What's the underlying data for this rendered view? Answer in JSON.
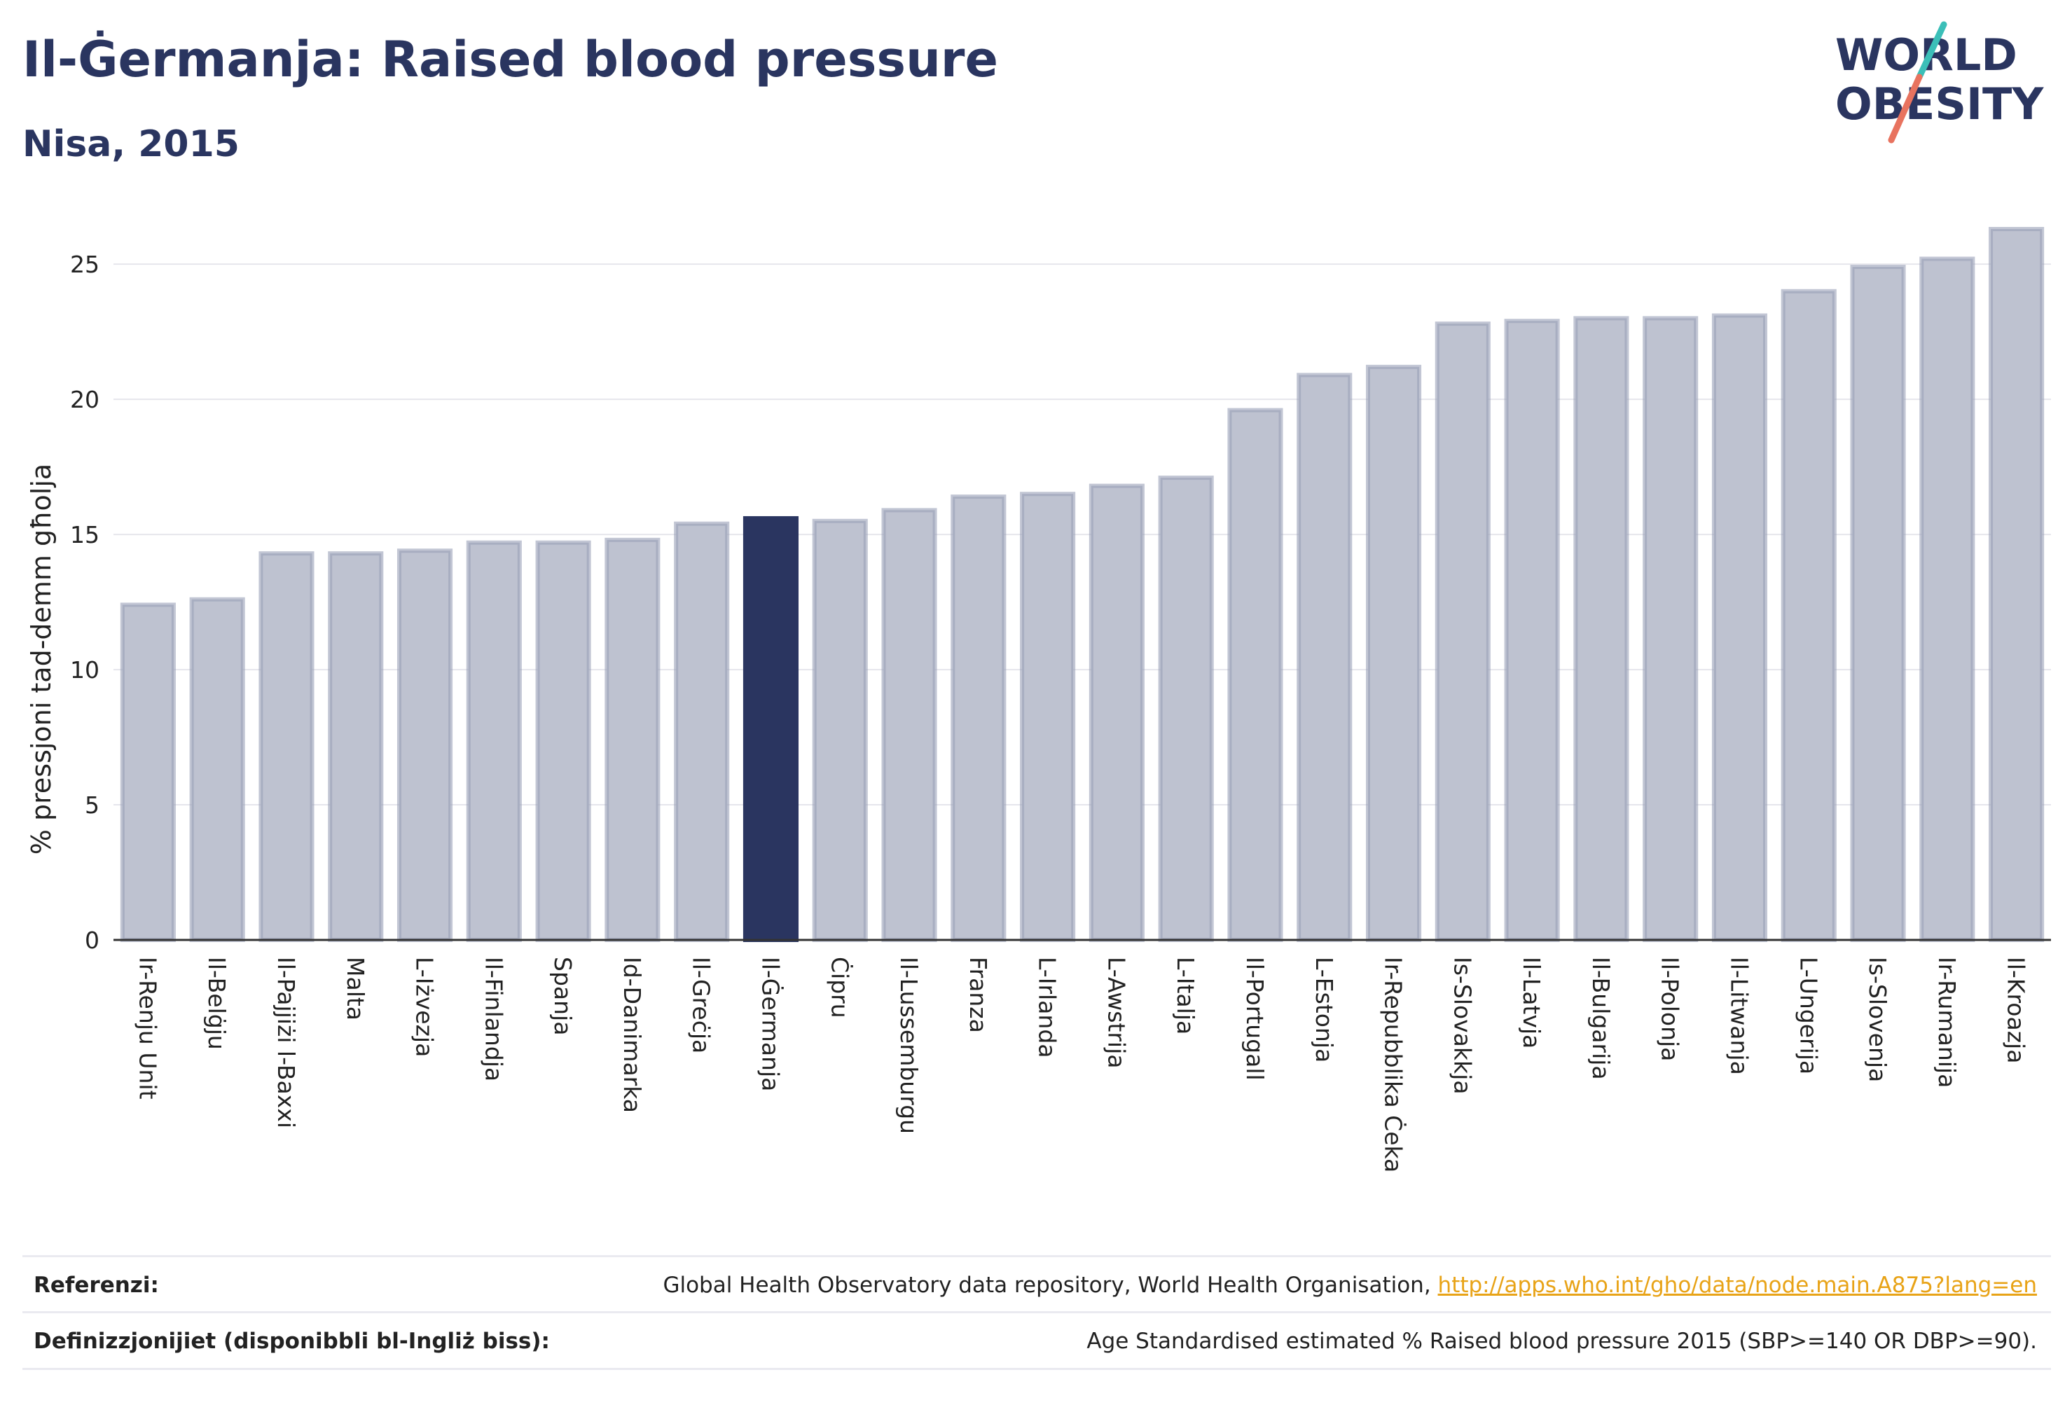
{
  "header": {
    "title": "Il-Ġermanja: Raised blood pressure",
    "subtitle": "Nisa, 2015"
  },
  "logo": {
    "line1": "WORLD",
    "line2": "OBESITY",
    "colors": {
      "text": "#2a3560",
      "slash_teal": "#3bbfb8",
      "slash_coral": "#e8735f"
    }
  },
  "colors": {
    "bar_fill": "#bec2d0",
    "bar_stroke": "#9aa0b8",
    "highlight_fill": "#2a3560",
    "grid": "#e6e6ec",
    "axis": "#333333"
  },
  "chart_data": {
    "type": "bar",
    "title": "",
    "xlabel": "",
    "ylabel": "% pressjoni tad-demm għolja",
    "ylim": [
      0,
      27
    ],
    "yticks": [
      0,
      5,
      10,
      15,
      20,
      25
    ],
    "grid": true,
    "highlight": "Il-Ġermanja",
    "categories": [
      "Ir-Renju Unit",
      "Il-Belġju",
      "Il-Pajjiżi l-Baxxi",
      "Malta",
      "L-Iżvezja",
      "Il-Finlandja",
      "Spanja",
      "Id-Danimarka",
      "Il-Greċja",
      "Il-Ġermanja",
      "Ċipru",
      "Il-Lussemburgu",
      "Franza",
      "L-Irlanda",
      "L-Awstrija",
      "L-Italja",
      "Il-Portugall",
      "L-Estonja",
      "Ir-Repubblika Ċeka",
      "Is-Slovakkja",
      "Il-Latvja",
      "Il-Bulgarija",
      "Il-Polonja",
      "Il-Litwanja",
      "L-Ungerija",
      "Is-Slovenja",
      "Ir-Rumanija",
      "Il-Kroazja"
    ],
    "values": [
      12.4,
      12.6,
      14.3,
      14.3,
      14.4,
      14.7,
      14.7,
      14.8,
      15.4,
      15.6,
      15.5,
      15.9,
      16.4,
      16.5,
      16.8,
      17.1,
      19.6,
      20.9,
      21.2,
      22.8,
      22.9,
      23.0,
      23.0,
      23.1,
      24.0,
      24.9,
      25.2,
      26.3
    ]
  },
  "footer": {
    "references_label": "Referenzi:",
    "references_text": "Global Health Observatory data repository, World Health Organisation, ",
    "references_link": "http://apps.who.int/gho/data/node.main.A875?lang=en",
    "definitions_label": "Definizzjonijiet (disponibbli bl-Ingliż biss):",
    "definitions_text": "Age Standardised estimated % Raised blood pressure 2015 (SBP>=140 OR DBP>=90)."
  }
}
